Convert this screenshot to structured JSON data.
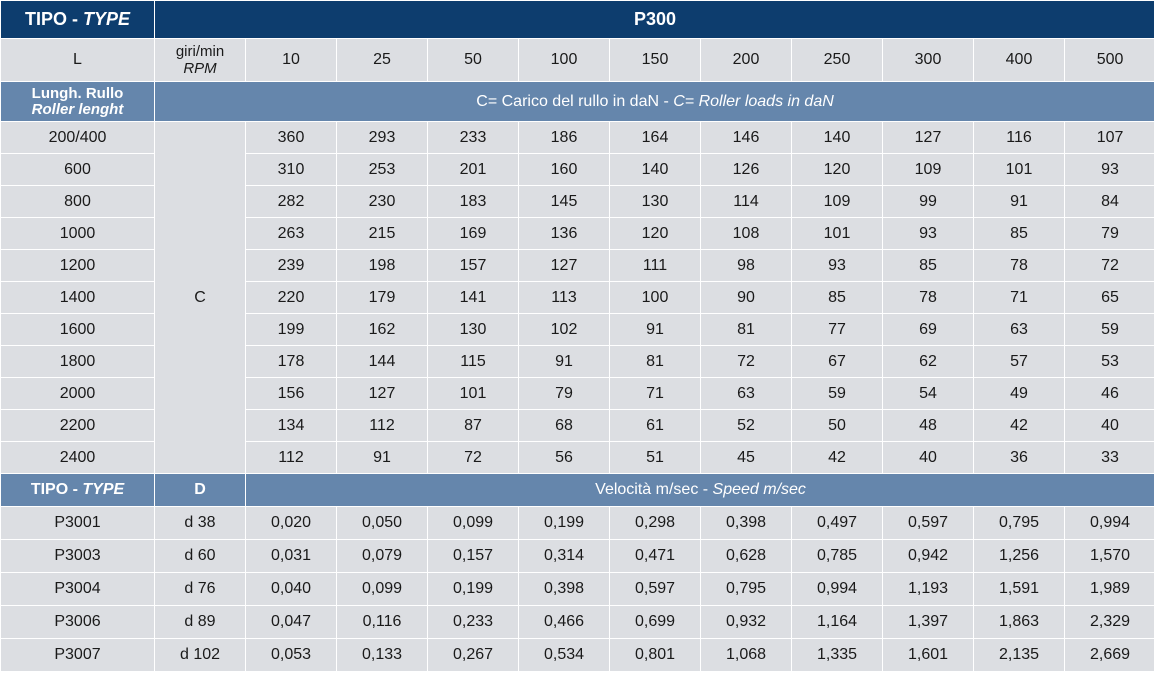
{
  "header": {
    "tipo_label": "TIPO - ",
    "type_label": "TYPE",
    "model": "P300",
    "l_label": "L",
    "rpm_label_line1": "giri/min",
    "rpm_label_line2": "RPM",
    "rpm_values": [
      "10",
      "25",
      "50",
      "100",
      "150",
      "200",
      "250",
      "300",
      "400",
      "500"
    ]
  },
  "loads_section": {
    "length_label": "Lungh. Rullo",
    "length_label_en": "Roller lenght",
    "title_it": "C= Carico del rullo in daN - ",
    "title_en": "C= Roller loads in daN",
    "c_label": "C",
    "rows": [
      {
        "length": "200/400",
        "values": [
          "360",
          "293",
          "233",
          "186",
          "164",
          "146",
          "140",
          "127",
          "116",
          "107"
        ]
      },
      {
        "length": "600",
        "values": [
          "310",
          "253",
          "201",
          "160",
          "140",
          "126",
          "120",
          "109",
          "101",
          "93"
        ]
      },
      {
        "length": "800",
        "values": [
          "282",
          "230",
          "183",
          "145",
          "130",
          "114",
          "109",
          "99",
          "91",
          "84"
        ]
      },
      {
        "length": "1000",
        "values": [
          "263",
          "215",
          "169",
          "136",
          "120",
          "108",
          "101",
          "93",
          "85",
          "79"
        ]
      },
      {
        "length": "1200",
        "values": [
          "239",
          "198",
          "157",
          "127",
          "111",
          "98",
          "93",
          "85",
          "78",
          "72"
        ]
      },
      {
        "length": "1400",
        "values": [
          "220",
          "179",
          "141",
          "113",
          "100",
          "90",
          "85",
          "78",
          "71",
          "65"
        ]
      },
      {
        "length": "1600",
        "values": [
          "199",
          "162",
          "130",
          "102",
          "91",
          "81",
          "77",
          "69",
          "63",
          "59"
        ]
      },
      {
        "length": "1800",
        "values": [
          "178",
          "144",
          "115",
          "91",
          "81",
          "72",
          "67",
          "62",
          "57",
          "53"
        ]
      },
      {
        "length": "2000",
        "values": [
          "156",
          "127",
          "101",
          "79",
          "71",
          "63",
          "59",
          "54",
          "49",
          "46"
        ]
      },
      {
        "length": "2200",
        "values": [
          "134",
          "112",
          "87",
          "68",
          "61",
          "52",
          "50",
          "48",
          "42",
          "40"
        ]
      },
      {
        "length": "2400",
        "values": [
          "112",
          "91",
          "72",
          "56",
          "51",
          "45",
          "42",
          "40",
          "36",
          "33"
        ]
      }
    ]
  },
  "speed_section": {
    "tipo_label": "TIPO - ",
    "type_label": "TYPE",
    "d_label": "D",
    "title_it": "Velocità m/sec - ",
    "title_en": "Speed m/sec",
    "rows": [
      {
        "type": "P3001",
        "d": "d 38",
        "values": [
          "0,020",
          "0,050",
          "0,099",
          "0,199",
          "0,298",
          "0,398",
          "0,497",
          "0,597",
          "0,795",
          "0,994"
        ]
      },
      {
        "type": "P3003",
        "d": "d 60",
        "values": [
          "0,031",
          "0,079",
          "0,157",
          "0,314",
          "0,471",
          "0,628",
          "0,785",
          "0,942",
          "1,256",
          "1,570"
        ]
      },
      {
        "type": "P3004",
        "d": "d 76",
        "values": [
          "0,040",
          "0,099",
          "0,199",
          "0,398",
          "0,597",
          "0,795",
          "0,994",
          "1,193",
          "1,591",
          "1,989"
        ]
      },
      {
        "type": "P3006",
        "d": "d 89",
        "values": [
          "0,047",
          "0,116",
          "0,233",
          "0,466",
          "0,699",
          "0,932",
          "1,164",
          "1,397",
          "1,863",
          "2,329"
        ]
      },
      {
        "type": "P3007",
        "d": "d 102",
        "values": [
          "0,053",
          "0,133",
          "0,267",
          "0,534",
          "0,801",
          "1,068",
          "1,335",
          "1,601",
          "2,135",
          "2,669"
        ]
      }
    ]
  },
  "colors": {
    "header_dark": "#0d3d6e",
    "header_mid": "#6586ac",
    "cell_bg": "#dcdee2"
  }
}
